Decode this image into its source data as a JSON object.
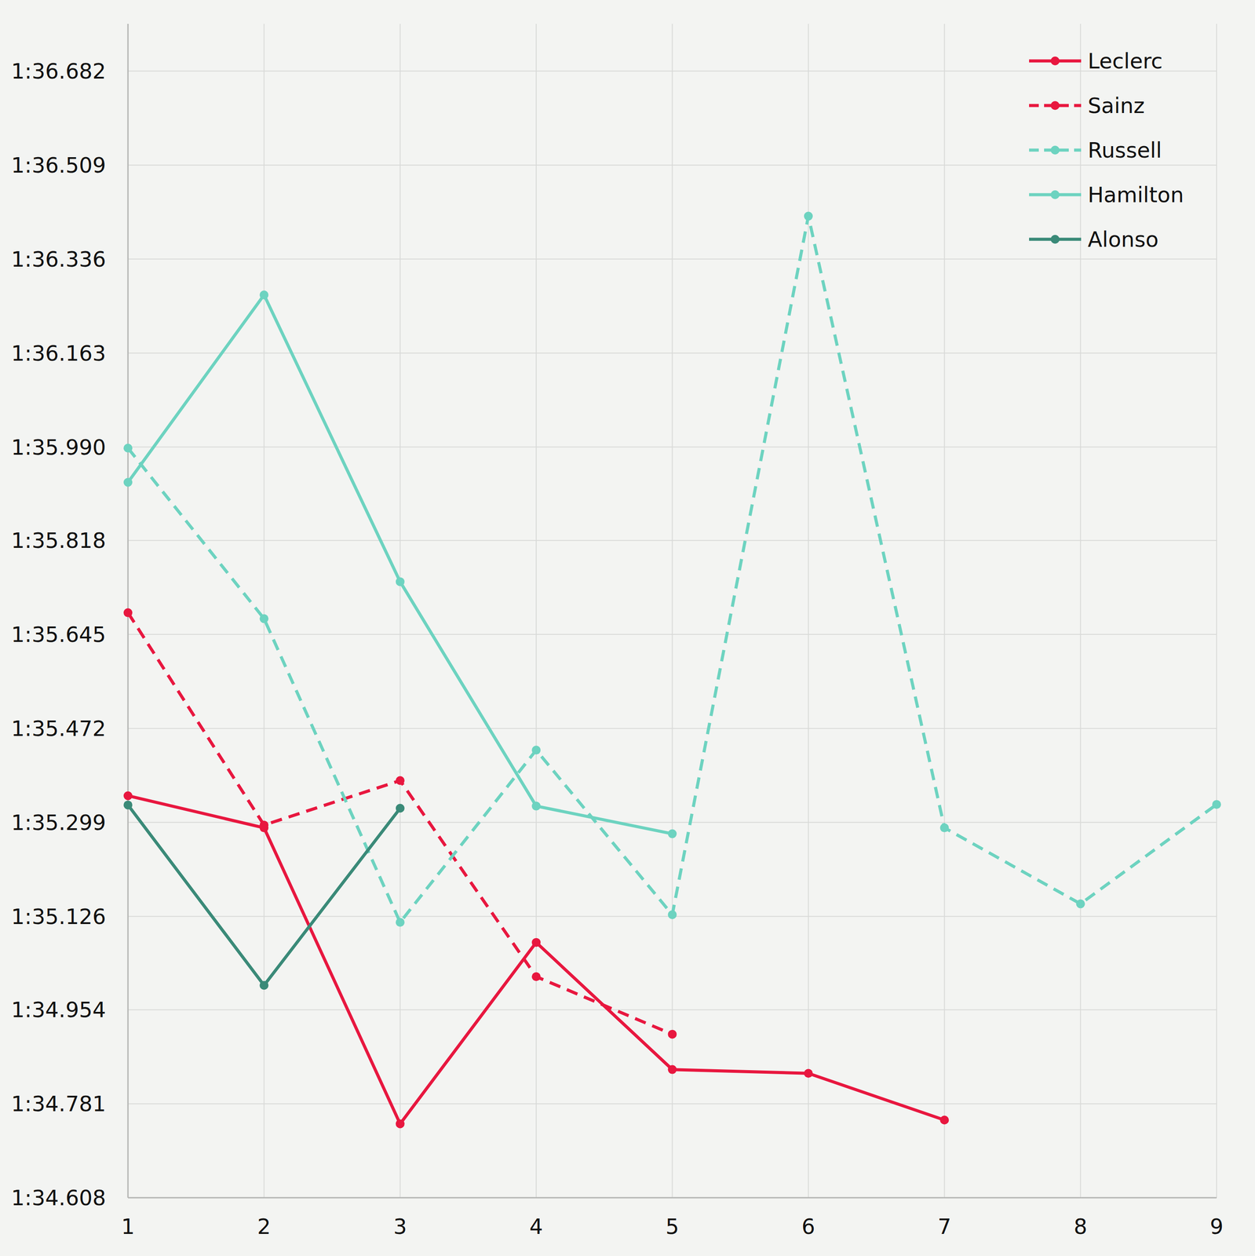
{
  "chart_data": {
    "type": "line",
    "x": [
      1,
      2,
      3,
      4,
      5,
      6,
      7,
      8,
      9
    ],
    "xlim": [
      1,
      9
    ],
    "xticks": [
      1,
      2,
      3,
      4,
      5,
      6,
      7,
      8,
      9
    ],
    "ylim": [
      94.608,
      96.769
    ],
    "yticks": [
      {
        "value": 94.608,
        "label": "1:34.608"
      },
      {
        "value": 94.781,
        "label": "1:34.781"
      },
      {
        "value": 94.954,
        "label": "1:34.954"
      },
      {
        "value": 95.126,
        "label": "1:35.126"
      },
      {
        "value": 95.299,
        "label": "1:35.299"
      },
      {
        "value": 95.472,
        "label": "1:35.472"
      },
      {
        "value": 95.645,
        "label": "1:35.645"
      },
      {
        "value": 95.818,
        "label": "1:35.818"
      },
      {
        "value": 95.99,
        "label": "1:35.990"
      },
      {
        "value": 96.163,
        "label": "1:36.163"
      },
      {
        "value": 96.336,
        "label": "1:36.336"
      },
      {
        "value": 96.509,
        "label": "1:36.509"
      },
      {
        "value": 96.682,
        "label": "1:36.682"
      }
    ],
    "grid": true,
    "legend": "top-right",
    "series": [
      {
        "name": "Leclerc",
        "color": "#e8173f",
        "line_style": "solid",
        "marker": "circle",
        "values": [
          95.348,
          95.289,
          94.744,
          95.078,
          94.844,
          94.837,
          94.751,
          null,
          null
        ]
      },
      {
        "name": "Sainz",
        "color": "#e8173f",
        "line_style": "dashed",
        "marker": "circle",
        "values": [
          95.685,
          95.294,
          95.376,
          95.015,
          94.909,
          null,
          null,
          null,
          null
        ]
      },
      {
        "name": "Russell",
        "color": "#6dd3c0",
        "line_style": "dashed",
        "marker": "circle",
        "values": [
          95.988,
          95.674,
          95.115,
          95.432,
          95.129,
          96.415,
          95.289,
          95.149,
          95.332
        ]
      },
      {
        "name": "Hamilton",
        "color": "#6dd3c0",
        "line_style": "solid",
        "marker": "circle",
        "values": [
          95.925,
          96.27,
          95.742,
          95.329,
          95.278,
          null,
          null,
          null,
          null
        ]
      },
      {
        "name": "Alonso",
        "color": "#3a8a78",
        "line_style": "solid",
        "marker": "circle",
        "values": [
          95.331,
          94.999,
          95.325,
          null,
          null,
          null,
          null,
          null,
          null
        ]
      }
    ]
  }
}
